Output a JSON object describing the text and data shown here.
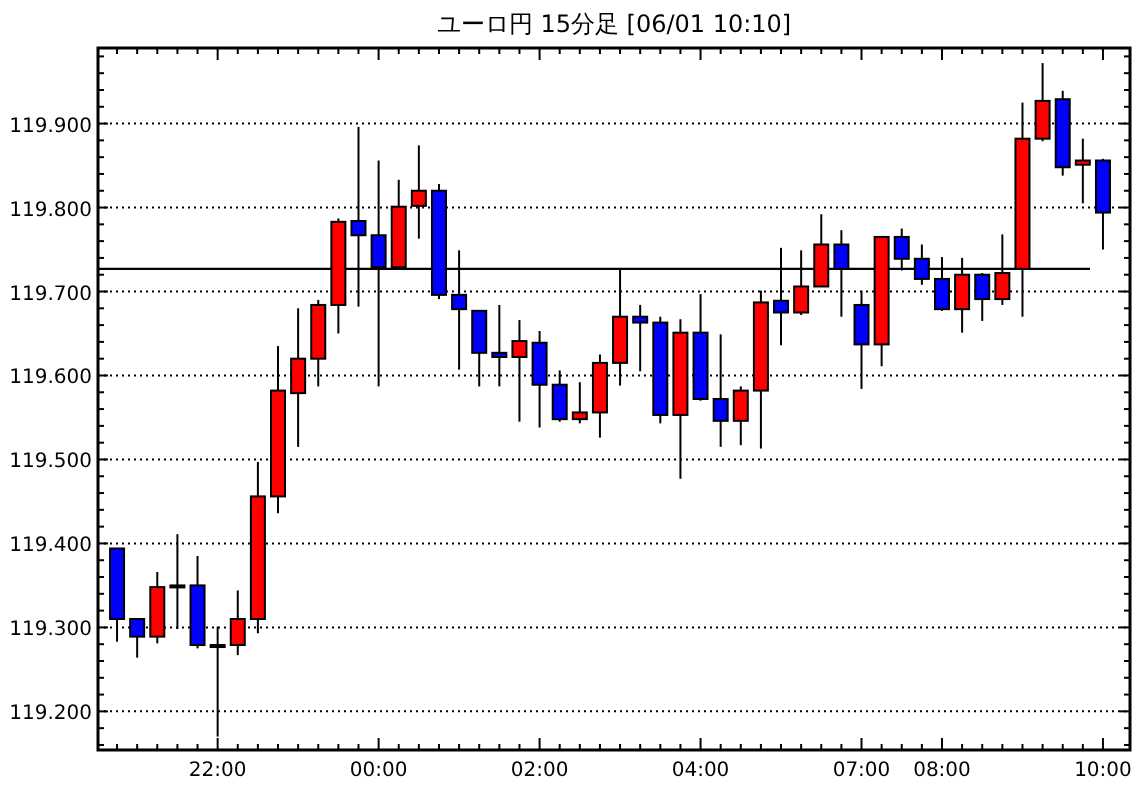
{
  "chart_data": {
    "type": "candlestick",
    "title": "ユーロ円 15分足 [06/01 10:10]",
    "categories": [
      null,
      null,
      null,
      null,
      null,
      "22:00",
      null,
      null,
      null,
      null,
      null,
      null,
      null,
      "00:00",
      null,
      null,
      null,
      null,
      null,
      null,
      null,
      "02:00",
      null,
      null,
      null,
      null,
      null,
      null,
      null,
      "04:00",
      null,
      null,
      null,
      null,
      null,
      null,
      null,
      "07:00",
      null,
      null,
      null,
      "08:00",
      null,
      null,
      null,
      null,
      null,
      null,
      null,
      "10:00"
    ],
    "ohlc": [
      [
        119.394,
        119.394,
        119.283,
        119.31
      ],
      [
        119.31,
        119.31,
        119.264,
        119.289
      ],
      [
        119.289,
        119.366,
        119.281,
        119.348
      ],
      [
        119.35,
        119.411,
        119.298,
        119.348
      ],
      [
        119.35,
        119.385,
        119.275,
        119.279
      ],
      [
        119.279,
        119.301,
        119.17,
        119.279
      ],
      [
        119.279,
        119.344,
        119.267,
        119.31
      ],
      [
        119.31,
        119.497,
        119.293,
        119.456
      ],
      [
        119.456,
        119.635,
        119.436,
        119.582
      ],
      [
        119.579,
        119.68,
        119.515,
        119.62
      ],
      [
        119.62,
        119.69,
        119.587,
        119.684
      ],
      [
        119.684,
        119.787,
        119.65,
        119.783
      ],
      [
        119.784,
        119.896,
        119.682,
        119.767
      ],
      [
        119.767,
        119.856,
        119.587,
        119.729
      ],
      [
        119.729,
        119.833,
        119.729,
        119.801
      ],
      [
        119.802,
        119.874,
        119.763,
        119.82
      ],
      [
        119.82,
        119.828,
        119.691,
        119.696
      ],
      [
        119.696,
        119.749,
        119.607,
        119.679
      ],
      [
        119.677,
        119.677,
        119.587,
        119.627
      ],
      [
        119.627,
        119.684,
        119.587,
        119.622
      ],
      [
        119.622,
        119.666,
        119.545,
        119.641
      ],
      [
        119.639,
        119.653,
        119.538,
        119.589
      ],
      [
        119.589,
        119.606,
        119.545,
        119.548
      ],
      [
        119.548,
        119.592,
        119.543,
        119.556
      ],
      [
        119.556,
        119.625,
        119.526,
        119.615
      ],
      [
        119.615,
        119.727,
        119.588,
        119.67
      ],
      [
        119.67,
        119.684,
        119.605,
        119.663
      ],
      [
        119.663,
        119.67,
        119.543,
        119.553
      ],
      [
        119.553,
        119.667,
        119.477,
        119.651
      ],
      [
        119.651,
        119.697,
        119.57,
        119.572
      ],
      [
        119.572,
        119.649,
        119.515,
        119.546
      ],
      [
        119.546,
        119.587,
        119.517,
        119.582
      ],
      [
        119.582,
        119.701,
        119.513,
        119.687
      ],
      [
        119.689,
        119.752,
        119.636,
        119.675
      ],
      [
        119.675,
        119.749,
        119.672,
        119.706
      ],
      [
        119.706,
        119.792,
        119.706,
        119.756
      ],
      [
        119.756,
        119.773,
        119.67,
        119.727
      ],
      [
        119.684,
        119.701,
        119.584,
        119.637
      ],
      [
        119.637,
        119.765,
        119.611,
        119.765
      ],
      [
        119.765,
        119.775,
        119.725,
        119.739
      ],
      [
        119.739,
        119.756,
        119.708,
        119.715
      ],
      [
        119.715,
        119.741,
        119.677,
        119.679
      ],
      [
        119.679,
        119.74,
        119.651,
        119.72
      ],
      [
        119.72,
        119.722,
        119.665,
        119.691
      ],
      [
        119.691,
        119.768,
        119.684,
        119.722
      ],
      [
        119.727,
        119.925,
        119.67,
        119.882
      ],
      [
        119.882,
        119.972,
        119.879,
        119.927
      ],
      [
        119.929,
        119.939,
        119.838,
        119.848
      ],
      [
        119.851,
        119.882,
        119.805,
        119.856
      ],
      [
        119.856,
        119.858,
        119.75,
        119.794
      ]
    ],
    "colors": [
      "#0000ff",
      "#0000ff",
      "#ff0000",
      "#0000ff",
      "#0000ff",
      "#0000ff",
      "#ff0000",
      "#ff0000",
      "#ff0000",
      "#ff0000",
      "#ff0000",
      "#ff0000",
      "#0000ff",
      "#0000ff",
      "#ff0000",
      "#ff0000",
      "#0000ff",
      "#0000ff",
      "#0000ff",
      "#0000ff",
      "#ff0000",
      "#0000ff",
      "#0000ff",
      "#ff0000",
      "#ff0000",
      "#ff0000",
      "#0000ff",
      "#0000ff",
      "#ff0000",
      "#0000ff",
      "#0000ff",
      "#ff0000",
      "#ff0000",
      "#0000ff",
      "#ff0000",
      "#ff0000",
      "#0000ff",
      "#0000ff",
      "#ff0000",
      "#0000ff",
      "#0000ff",
      "#0000ff",
      "#ff0000",
      "#0000ff",
      "#ff0000",
      "#ff0000",
      "#ff0000",
      "#0000ff",
      "#ff0000",
      "#0000ff"
    ],
    "ylim": [
      119.154,
      119.99
    ],
    "yticks": [
      {
        "value": 119.16,
        "label": null
      },
      {
        "value": 119.18,
        "label": null
      },
      {
        "value": 119.2,
        "label": "119.200"
      },
      {
        "value": 119.22,
        "label": null
      },
      {
        "value": 119.24,
        "label": null
      },
      {
        "value": 119.26,
        "label": null
      },
      {
        "value": 119.28,
        "label": null
      },
      {
        "value": 119.3,
        "label": "119.300"
      },
      {
        "value": 119.32,
        "label": null
      },
      {
        "value": 119.34,
        "label": null
      },
      {
        "value": 119.36,
        "label": null
      },
      {
        "value": 119.38,
        "label": null
      },
      {
        "value": 119.4,
        "label": "119.400"
      },
      {
        "value": 119.42,
        "label": null
      },
      {
        "value": 119.44,
        "label": null
      },
      {
        "value": 119.46,
        "label": null
      },
      {
        "value": 119.48,
        "label": null
      },
      {
        "value": 119.5,
        "label": "119.500"
      },
      {
        "value": 119.52,
        "label": null
      },
      {
        "value": 119.54,
        "label": null
      },
      {
        "value": 119.56,
        "label": null
      },
      {
        "value": 119.58,
        "label": null
      },
      {
        "value": 119.6,
        "label": "119.600"
      },
      {
        "value": 119.62,
        "label": null
      },
      {
        "value": 119.64,
        "label": null
      },
      {
        "value": 119.66,
        "label": null
      },
      {
        "value": 119.68,
        "label": null
      },
      {
        "value": 119.7,
        "label": "119.700"
      },
      {
        "value": 119.72,
        "label": null
      },
      {
        "value": 119.74,
        "label": null
      },
      {
        "value": 119.76,
        "label": null
      },
      {
        "value": 119.78,
        "label": null
      },
      {
        "value": 119.8,
        "label": "119.800"
      },
      {
        "value": 119.82,
        "label": null
      },
      {
        "value": 119.84,
        "label": null
      },
      {
        "value": 119.86,
        "label": null
      },
      {
        "value": 119.88,
        "label": null
      },
      {
        "value": 119.9,
        "label": "119.900"
      },
      {
        "value": 119.92,
        "label": null
      },
      {
        "value": 119.94,
        "label": null
      },
      {
        "value": 119.96,
        "label": null
      },
      {
        "value": 119.98,
        "label": null
      }
    ],
    "grid": "y",
    "ref_lines": [
      {
        "axis": "y",
        "value": 119.727,
        "color": "#000000"
      }
    ]
  }
}
